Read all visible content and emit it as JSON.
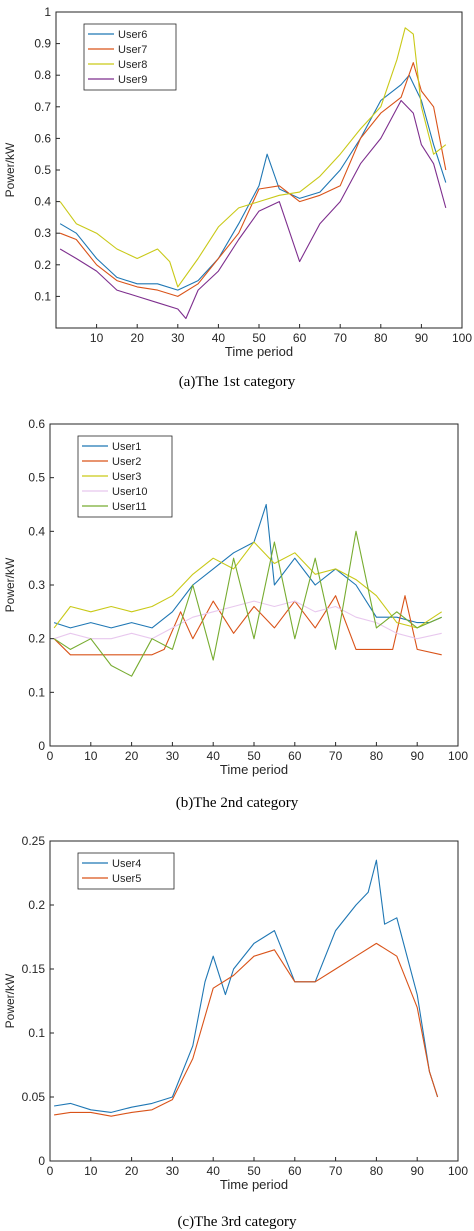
{
  "chart_data": [
    {
      "type": "line",
      "caption": "(a)The 1st category",
      "xlabel": "Time period",
      "ylabel": "Power/kW",
      "xlim": [
        0,
        100
      ],
      "ylim": [
        0,
        1
      ],
      "xticks": [
        10,
        20,
        30,
        40,
        50,
        60,
        70,
        80,
        90,
        100
      ],
      "yticks": [
        0.1,
        0.2,
        0.3,
        0.4,
        0.5,
        0.6,
        0.7,
        0.8,
        0.9,
        1
      ],
      "ytick_labels": [
        "0.1",
        "0.2",
        "0.3",
        "0.4",
        "0.5",
        "0.6",
        "0.7",
        "0.8",
        "0.9",
        "1"
      ],
      "legend_position": "top-left",
      "grid": false,
      "series": [
        {
          "name": "User6",
          "color": "#1f77b4",
          "x": [
            1,
            5,
            10,
            15,
            20,
            25,
            30,
            35,
            40,
            45,
            50,
            52,
            55,
            60,
            65,
            70,
            75,
            80,
            85,
            87,
            90,
            93,
            96
          ],
          "y": [
            0.33,
            0.3,
            0.22,
            0.16,
            0.14,
            0.14,
            0.12,
            0.15,
            0.22,
            0.33,
            0.45,
            0.55,
            0.44,
            0.41,
            0.43,
            0.5,
            0.6,
            0.72,
            0.77,
            0.8,
            0.72,
            0.58,
            0.46
          ]
        },
        {
          "name": "User7",
          "color": "#d95319",
          "x": [
            1,
            5,
            10,
            15,
            20,
            25,
            30,
            35,
            40,
            45,
            50,
            55,
            60,
            65,
            70,
            75,
            80,
            85,
            88,
            90,
            93,
            96
          ],
          "y": [
            0.3,
            0.28,
            0.2,
            0.15,
            0.13,
            0.12,
            0.1,
            0.14,
            0.22,
            0.3,
            0.44,
            0.45,
            0.4,
            0.42,
            0.45,
            0.6,
            0.68,
            0.73,
            0.84,
            0.75,
            0.7,
            0.5
          ]
        },
        {
          "name": "User8",
          "color": "#c9c918",
          "x": [
            1,
            5,
            10,
            15,
            20,
            25,
            28,
            30,
            35,
            40,
            45,
            50,
            55,
            60,
            65,
            70,
            75,
            80,
            84,
            86,
            88,
            90,
            93,
            96
          ],
          "y": [
            0.4,
            0.33,
            0.3,
            0.25,
            0.22,
            0.25,
            0.21,
            0.13,
            0.22,
            0.32,
            0.38,
            0.4,
            0.42,
            0.43,
            0.48,
            0.55,
            0.63,
            0.7,
            0.85,
            0.95,
            0.93,
            0.7,
            0.55,
            0.58
          ]
        },
        {
          "name": "User9",
          "color": "#7e2f8e",
          "x": [
            1,
            5,
            10,
            15,
            20,
            25,
            30,
            32,
            35,
            40,
            45,
            50,
            55,
            60,
            65,
            70,
            75,
            80,
            85,
            88,
            90,
            93,
            96
          ],
          "y": [
            0.25,
            0.22,
            0.18,
            0.12,
            0.1,
            0.08,
            0.06,
            0.03,
            0.12,
            0.18,
            0.28,
            0.37,
            0.4,
            0.21,
            0.33,
            0.4,
            0.52,
            0.6,
            0.72,
            0.68,
            0.58,
            0.52,
            0.38
          ]
        }
      ]
    },
    {
      "type": "line",
      "caption": "(b)The 2nd category",
      "xlabel": "Time period",
      "ylabel": "Power/kW",
      "xlim": [
        0,
        100
      ],
      "ylim": [
        0,
        0.6
      ],
      "xticks": [
        0,
        10,
        20,
        30,
        40,
        50,
        60,
        70,
        80,
        90,
        100
      ],
      "yticks": [
        0,
        0.1,
        0.2,
        0.3,
        0.4,
        0.5,
        0.6
      ],
      "ytick_labels": [
        "0",
        "0.1",
        "0.2",
        "0.3",
        "0.4",
        "0.5",
        "0.6"
      ],
      "legend_position": "top-left",
      "grid": false,
      "series": [
        {
          "name": "User1",
          "color": "#1f77b4",
          "x": [
            1,
            5,
            10,
            15,
            20,
            25,
            30,
            35,
            40,
            45,
            50,
            53,
            55,
            60,
            65,
            70,
            75,
            80,
            85,
            90,
            93,
            96
          ],
          "y": [
            0.23,
            0.22,
            0.23,
            0.22,
            0.23,
            0.22,
            0.25,
            0.3,
            0.33,
            0.36,
            0.38,
            0.45,
            0.3,
            0.35,
            0.3,
            0.33,
            0.3,
            0.24,
            0.24,
            0.23,
            0.23,
            0.24
          ]
        },
        {
          "name": "User2",
          "color": "#d95319",
          "x": [
            1,
            5,
            10,
            15,
            20,
            25,
            28,
            32,
            35,
            40,
            45,
            50,
            55,
            60,
            65,
            70,
            75,
            80,
            84,
            87,
            90,
            96
          ],
          "y": [
            0.2,
            0.17,
            0.17,
            0.17,
            0.17,
            0.17,
            0.18,
            0.25,
            0.2,
            0.27,
            0.21,
            0.26,
            0.22,
            0.27,
            0.22,
            0.28,
            0.18,
            0.18,
            0.18,
            0.28,
            0.18,
            0.17
          ]
        },
        {
          "name": "User3",
          "color": "#c9c918",
          "x": [
            1,
            5,
            10,
            15,
            20,
            25,
            30,
            35,
            40,
            45,
            50,
            55,
            60,
            65,
            70,
            75,
            80,
            85,
            90,
            96
          ],
          "y": [
            0.22,
            0.26,
            0.25,
            0.26,
            0.25,
            0.26,
            0.28,
            0.32,
            0.35,
            0.33,
            0.38,
            0.34,
            0.36,
            0.32,
            0.33,
            0.31,
            0.28,
            0.23,
            0.22,
            0.25
          ]
        },
        {
          "name": "User10",
          "color": "#e8c8ee",
          "x": [
            1,
            5,
            10,
            15,
            20,
            25,
            30,
            35,
            40,
            45,
            50,
            55,
            60,
            65,
            70,
            75,
            80,
            85,
            90,
            96
          ],
          "y": [
            0.2,
            0.21,
            0.2,
            0.2,
            0.21,
            0.2,
            0.22,
            0.24,
            0.25,
            0.26,
            0.27,
            0.26,
            0.27,
            0.25,
            0.26,
            0.24,
            0.23,
            0.21,
            0.2,
            0.21
          ]
        },
        {
          "name": "User11",
          "color": "#77ac30",
          "x": [
            1,
            5,
            10,
            15,
            20,
            25,
            30,
            35,
            40,
            45,
            50,
            55,
            60,
            65,
            70,
            75,
            80,
            85,
            90,
            96
          ],
          "y": [
            0.2,
            0.18,
            0.2,
            0.15,
            0.13,
            0.2,
            0.18,
            0.3,
            0.16,
            0.35,
            0.2,
            0.38,
            0.2,
            0.35,
            0.18,
            0.4,
            0.22,
            0.25,
            0.22,
            0.24
          ]
        }
      ]
    },
    {
      "type": "line",
      "caption": "(c)The 3rd category",
      "xlabel": "Time period",
      "ylabel": "Power/kW",
      "xlim": [
        0,
        100
      ],
      "ylim": [
        0,
        0.25
      ],
      "xticks": [
        0,
        10,
        20,
        30,
        40,
        50,
        60,
        70,
        80,
        90,
        100
      ],
      "yticks": [
        0,
        0.05,
        0.1,
        0.15,
        0.2,
        0.25
      ],
      "ytick_labels": [
        "0",
        "0.05",
        "0.1",
        "0.15",
        "0.2",
        "0.25"
      ],
      "legend_position": "top-left",
      "grid": false,
      "series": [
        {
          "name": "User4",
          "color": "#1f77b4",
          "x": [
            1,
            5,
            10,
            15,
            20,
            25,
            30,
            35,
            38,
            40,
            43,
            45,
            50,
            55,
            60,
            65,
            70,
            75,
            78,
            80,
            82,
            85,
            90,
            93,
            95
          ],
          "y": [
            0.043,
            0.045,
            0.04,
            0.038,
            0.042,
            0.045,
            0.05,
            0.09,
            0.14,
            0.16,
            0.13,
            0.15,
            0.17,
            0.18,
            0.14,
            0.14,
            0.18,
            0.2,
            0.21,
            0.235,
            0.185,
            0.19,
            0.13,
            0.07,
            0.05
          ]
        },
        {
          "name": "User5",
          "color": "#d95319",
          "x": [
            1,
            5,
            10,
            15,
            20,
            25,
            30,
            35,
            40,
            45,
            50,
            55,
            60,
            65,
            70,
            75,
            80,
            85,
            90,
            93,
            95
          ],
          "y": [
            0.036,
            0.038,
            0.038,
            0.035,
            0.038,
            0.04,
            0.048,
            0.08,
            0.135,
            0.145,
            0.16,
            0.165,
            0.14,
            0.14,
            0.15,
            0.16,
            0.17,
            0.16,
            0.12,
            0.07,
            0.05
          ]
        }
      ]
    }
  ]
}
